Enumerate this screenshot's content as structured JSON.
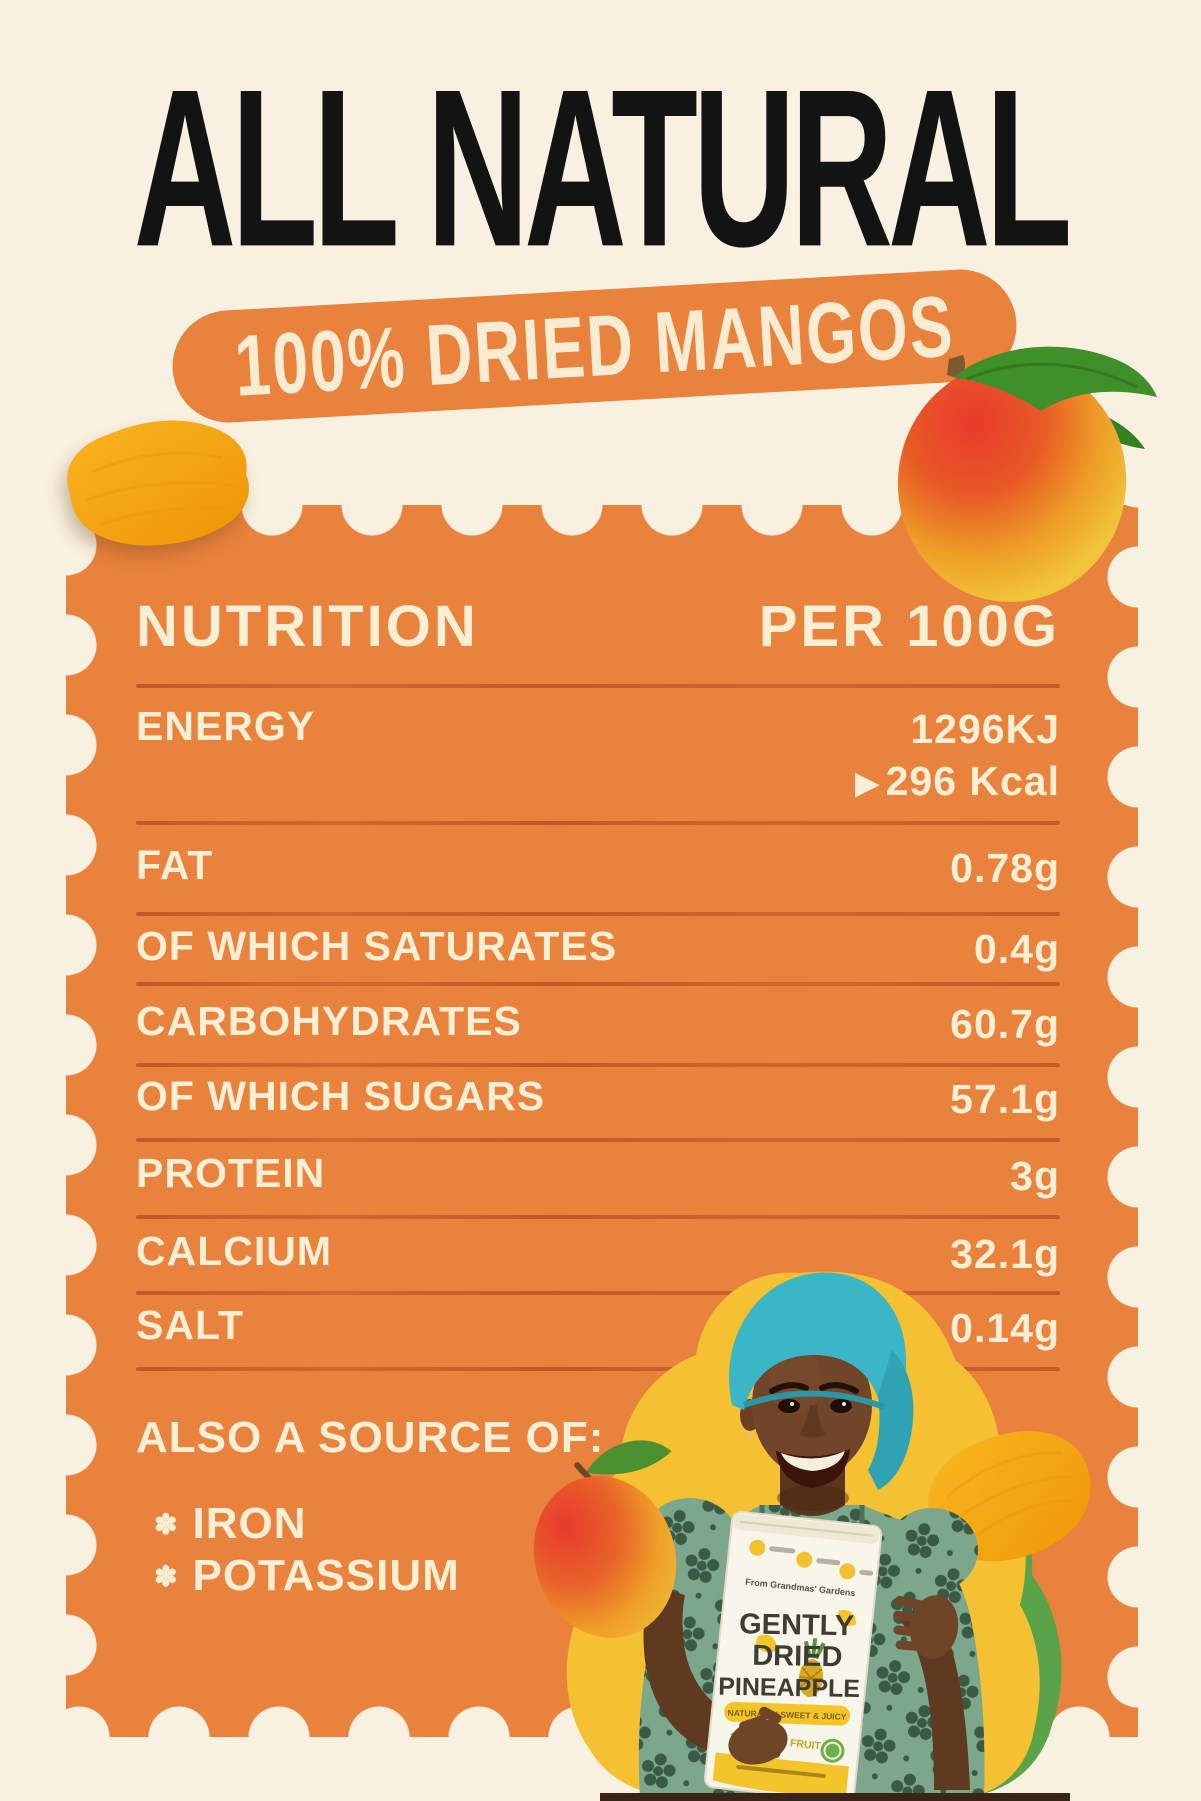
{
  "title": "ALL NATURAL",
  "banner": "100% DRIED MANGOS",
  "colors": {
    "background_cream": "#f8f0e0",
    "panel_orange": "#e8823c",
    "text_cream": "#faeed4",
    "divider_terracotta": "#bc5429",
    "title_black": "#131313",
    "sticker_yellow": "#f6c033",
    "sticker_green": "#5aa348",
    "headwrap_teal": "#3bb6c6"
  },
  "table": {
    "header": {
      "label": "NUTRITION",
      "value": "PER 100G"
    },
    "rows": [
      {
        "label": "ENERGY",
        "value": "1296KJ",
        "value2": "296 Kcal",
        "value2_arrow": "▶"
      },
      {
        "label": "FAT",
        "value": "0.78g"
      },
      {
        "label": "OF WHICH SATURATES",
        "value": "0.4g"
      },
      {
        "label": "CARBOHYDRATES",
        "value": "60.7g"
      },
      {
        "label": "OF WHICH SUGARS",
        "value": "57.1g"
      },
      {
        "label": "PROTEIN",
        "value": "3g"
      },
      {
        "label": "CALCIUM",
        "value": "32.1g"
      },
      {
        "label": "SALT",
        "value": "0.14g"
      }
    ],
    "also_source": {
      "title": "ALSO A SOURCE OF:",
      "bullet": "✽",
      "items": [
        "IRON",
        "POTASSIUM"
      ]
    }
  },
  "bag": {
    "brand": "From Grandmas' Gardens",
    "line1": "GENTLY",
    "line2": "DRIED",
    "line3": "PINEAPPLE",
    "ribbon": "NATURALLY SWEET & JUICY",
    "claim": "100% REAL FRUIT"
  }
}
